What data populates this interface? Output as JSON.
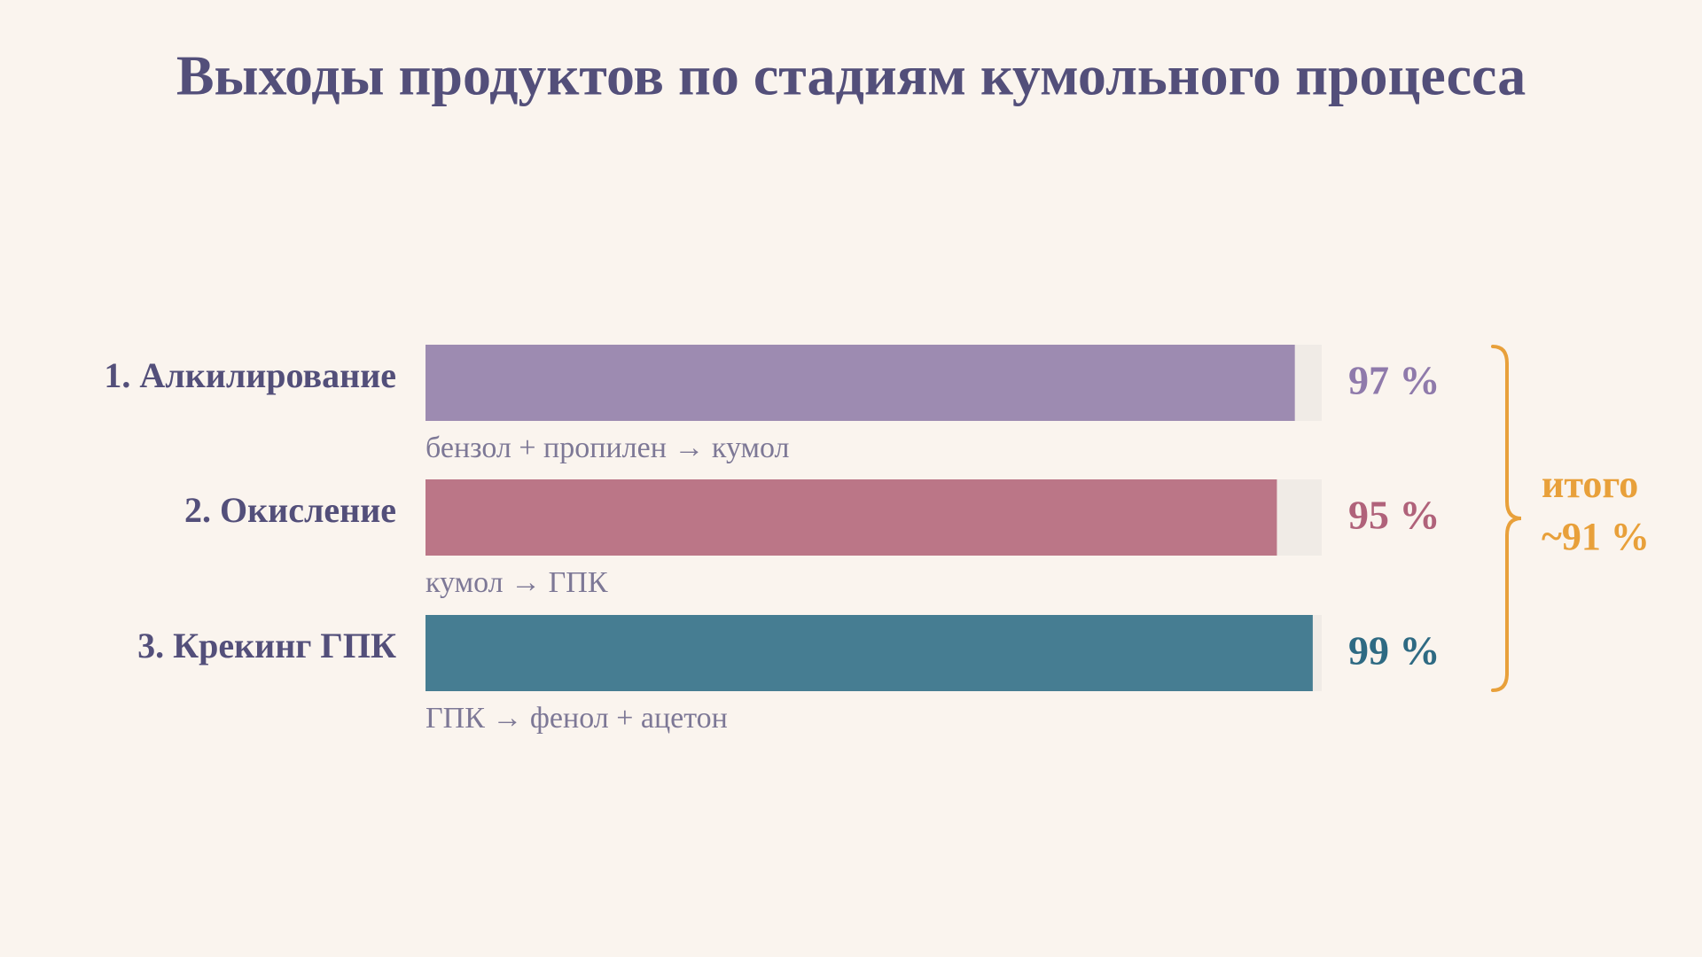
{
  "chart_data": {
    "type": "bar",
    "orientation": "horizontal",
    "title": "Выходы продуктов по стадиям кумольного процесса",
    "categories": [
      "1. Алкилирование",
      "2. Окисление",
      "3. Крекинг ГПК"
    ],
    "values": [
      97,
      95,
      99
    ],
    "value_labels": [
      "97 %",
      "95 %",
      "99 %"
    ],
    "colors": [
      "#9d8bb1",
      "#bb7687",
      "#467d92"
    ],
    "label_colors": [
      "#8f7aab",
      "#b0627a",
      "#2e6a83"
    ],
    "sublabels": [
      "бензол + пропилен → кумол",
      "кумол → ГПК",
      "ГПК → фенол + ацетон"
    ],
    "xlim": [
      0,
      100
    ],
    "annotation": [
      "итого",
      "~91 %"
    ],
    "annotation_color": "#e8a03a"
  }
}
